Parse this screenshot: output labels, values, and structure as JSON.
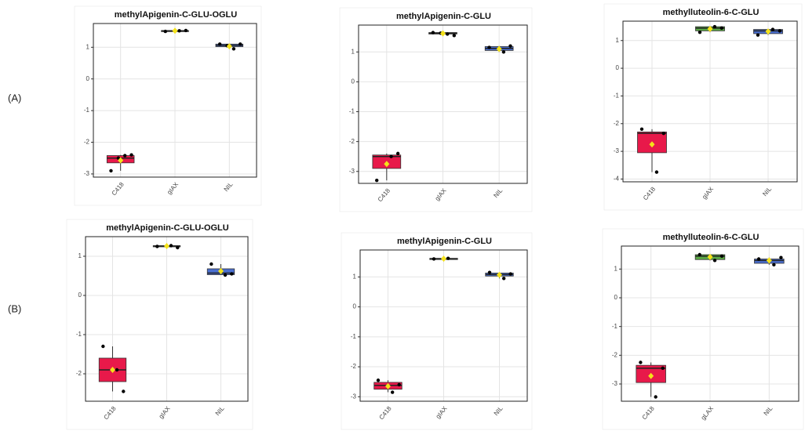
{
  "panel_labels": [
    "(A)",
    "(B)"
  ],
  "chart_data": [
    {
      "type": "box",
      "title": "methylApigenin-C-GLU-OGLU",
      "categories": [
        "C418",
        "gIAX",
        "NIL"
      ],
      "colors": [
        "#e8194a",
        "#7a9a6a",
        "#4a6fd0"
      ],
      "boxes": [
        {
          "whislo": -2.9,
          "q1": -2.65,
          "med": -2.5,
          "q3": -2.42,
          "whishi": -2.4,
          "mean": -2.57,
          "points": [
            -2.9,
            -2.42,
            -2.4,
            -2.5
          ]
        },
        {
          "whislo": 1.5,
          "q1": 1.5,
          "med": 1.52,
          "q3": 1.53,
          "whishi": 1.53,
          "mean": 1.52,
          "points": [
            1.5,
            1.52,
            1.53
          ]
        },
        {
          "whislo": 0.95,
          "q1": 1.02,
          "med": 1.06,
          "q3": 1.1,
          "whishi": 1.1,
          "mean": 1.03,
          "points": [
            1.1,
            0.95,
            1.1,
            1.05
          ]
        }
      ],
      "ylim": [
        -3.1,
        1.75
      ],
      "yticks": [
        -3,
        -2,
        -1,
        0,
        1
      ],
      "grid": true
    },
    {
      "type": "box",
      "title": "methylApigenin-C-GLU",
      "categories": [
        "C418",
        "gIAX",
        "NIL"
      ],
      "colors": [
        "#e8194a",
        "#7a9a6a",
        "#4a6fd0"
      ],
      "boxes": [
        {
          "whislo": -3.3,
          "q1": -2.9,
          "med": -2.5,
          "q3": -2.45,
          "whishi": -2.4,
          "mean": -2.75,
          "points": [
            -3.3,
            -2.5,
            -2.4
          ]
        },
        {
          "whislo": 1.55,
          "q1": 1.6,
          "med": 1.63,
          "q3": 1.65,
          "whishi": 1.65,
          "mean": 1.62,
          "points": [
            1.65,
            1.6,
            1.55,
            1.63
          ]
        },
        {
          "whislo": 1.0,
          "q1": 1.05,
          "med": 1.12,
          "q3": 1.18,
          "whishi": 1.2,
          "mean": 1.1,
          "points": [
            1.15,
            1.0,
            1.2
          ]
        }
      ],
      "ylim": [
        -3.4,
        1.9
      ],
      "yticks": [
        -3,
        -2,
        -1,
        0,
        1
      ],
      "grid": true
    },
    {
      "type": "box",
      "title": "methylluteolin-6-C-GLU",
      "categories": [
        "C418",
        "gIAX",
        "NIL"
      ],
      "colors": [
        "#e8194a",
        "#5aa844",
        "#4a6fd0"
      ],
      "boxes": [
        {
          "whislo": -3.75,
          "q1": -3.05,
          "med": -2.35,
          "q3": -2.3,
          "whishi": -2.2,
          "mean": -2.75,
          "points": [
            -2.2,
            -3.75,
            -2.35
          ]
        },
        {
          "whislo": 1.3,
          "q1": 1.35,
          "med": 1.45,
          "q3": 1.5,
          "whishi": 1.5,
          "mean": 1.42,
          "points": [
            1.3,
            1.5,
            1.45
          ]
        },
        {
          "whislo": 1.2,
          "q1": 1.25,
          "med": 1.35,
          "q3": 1.4,
          "whishi": 1.4,
          "mean": 1.33,
          "points": [
            1.2,
            1.4,
            1.35
          ]
        }
      ],
      "ylim": [
        -4.1,
        1.7
      ],
      "yticks": [
        -4,
        -3,
        -2,
        -1,
        0,
        1
      ],
      "grid": true
    },
    {
      "type": "box",
      "title": "methylApigenin-C-GLU-OGLU",
      "categories": [
        "C418",
        "gIAX",
        "NIL"
      ],
      "colors": [
        "#e8194a",
        "#7a9a6a",
        "#4a6fd0"
      ],
      "boxes": [
        {
          "whislo": -2.45,
          "q1": -2.2,
          "med": -1.9,
          "q3": -1.6,
          "whishi": -1.3,
          "mean": -1.9,
          "points": [
            -1.3,
            -1.9,
            -2.45
          ]
        },
        {
          "whislo": 1.22,
          "q1": 1.25,
          "med": 1.26,
          "q3": 1.27,
          "whishi": 1.27,
          "mean": 1.26,
          "points": [
            1.25,
            1.27,
            1.22
          ]
        },
        {
          "whislo": 0.52,
          "q1": 0.53,
          "med": 0.57,
          "q3": 0.68,
          "whishi": 0.8,
          "mean": 0.62,
          "points": [
            0.8,
            0.52,
            0.55
          ]
        }
      ],
      "ylim": [
        -2.7,
        1.5
      ],
      "yticks": [
        -2,
        -1,
        0,
        1
      ],
      "grid": true
    },
    {
      "type": "box",
      "title": "methylApigenin-C-GLU",
      "categories": [
        "C418",
        "gIAX",
        "NIL"
      ],
      "colors": [
        "#e8194a",
        "#7a9a6a",
        "#4a6fd0"
      ],
      "boxes": [
        {
          "whislo": -2.85,
          "q1": -2.75,
          "med": -2.62,
          "q3": -2.52,
          "whishi": -2.45,
          "mean": -2.65,
          "points": [
            -2.45,
            -2.85,
            -2.6
          ]
        },
        {
          "whislo": 1.6,
          "q1": 1.6,
          "med": 1.61,
          "q3": 1.62,
          "whishi": 1.62,
          "mean": 1.61,
          "points": [
            1.6,
            1.62
          ]
        },
        {
          "whislo": 0.95,
          "q1": 1.03,
          "med": 1.08,
          "q3": 1.13,
          "whishi": 1.15,
          "mean": 1.07,
          "points": [
            1.15,
            0.95,
            1.1
          ]
        }
      ],
      "ylim": [
        -3.15,
        1.9
      ],
      "yticks": [
        -3,
        -2,
        -1,
        0,
        1
      ],
      "grid": true
    },
    {
      "type": "box",
      "title": "methylluteolin-6-C-GLU",
      "categories": [
        "C418",
        "gLAX",
        "NIL"
      ],
      "colors": [
        "#e8194a",
        "#5aa844",
        "#4a6fd0"
      ],
      "boxes": [
        {
          "whislo": -3.45,
          "q1": -2.95,
          "med": -2.45,
          "q3": -2.35,
          "whishi": -2.25,
          "mean": -2.72,
          "points": [
            -2.25,
            -3.45,
            -2.45
          ]
        },
        {
          "whislo": 1.3,
          "q1": 1.33,
          "med": 1.45,
          "q3": 1.5,
          "whishi": 1.5,
          "mean": 1.42,
          "points": [
            1.5,
            1.3,
            1.45
          ]
        },
        {
          "whislo": 1.15,
          "q1": 1.2,
          "med": 1.3,
          "q3": 1.35,
          "whishi": 1.4,
          "mean": 1.3,
          "points": [
            1.35,
            1.15,
            1.4
          ]
        }
      ],
      "ylim": [
        -3.6,
        1.8
      ],
      "yticks": [
        -3,
        -2,
        -1,
        0,
        1
      ],
      "grid": true
    }
  ]
}
